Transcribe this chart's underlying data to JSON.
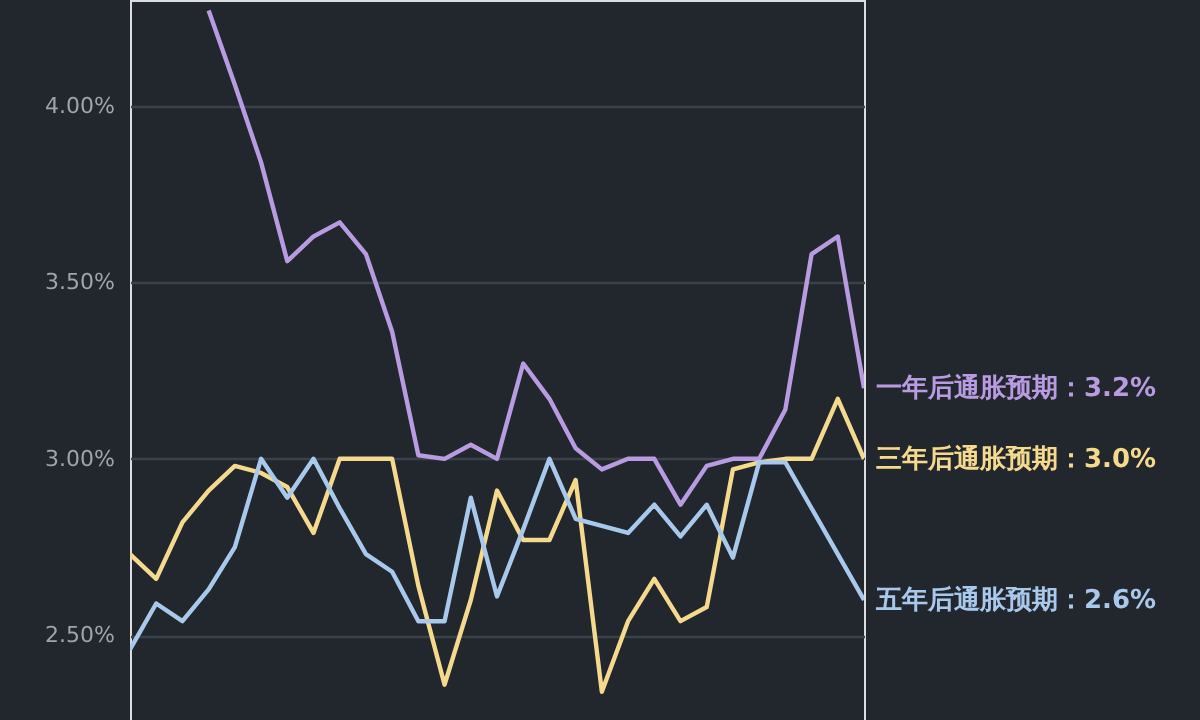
{
  "chart_data": {
    "type": "line",
    "categories": [
      null,
      null,
      null,
      null,
      null,
      null,
      null,
      null,
      null,
      null,
      null,
      null,
      null,
      null,
      null,
      null,
      null,
      null,
      null,
      null,
      null,
      null,
      null,
      null,
      null,
      null,
      null,
      null,
      null
    ],
    "series": [
      {
        "name": "一年后通胀预期：3.2%",
        "color": "#b89be0",
        "values": [
          null,
          null,
          null,
          4.27,
          4.06,
          3.84,
          3.56,
          3.63,
          3.67,
          3.58,
          3.36,
          3.01,
          3.0,
          3.04,
          3.0,
          3.27,
          3.17,
          3.03,
          2.97,
          3.0,
          3.0,
          2.87,
          2.98,
          3.0,
          3.0,
          3.14,
          3.58,
          3.63,
          3.2
        ]
      },
      {
        "name": "三年后通胀预期：3.0%",
        "color": "#f5d98c",
        "values": [
          2.73,
          2.66,
          2.82,
          2.91,
          2.98,
          2.96,
          2.92,
          2.79,
          3.0,
          3.0,
          3.0,
          2.64,
          2.36,
          2.6,
          2.91,
          2.77,
          2.77,
          2.94,
          2.34,
          2.54,
          2.66,
          2.54,
          2.58,
          2.97,
          2.99,
          3.0,
          3.0,
          3.17,
          3.0
        ]
      },
      {
        "name": "五年后通胀预期：2.6%",
        "color": "#a8c8ec",
        "values": [
          2.46,
          2.59,
          2.54,
          2.63,
          2.75,
          3.0,
          2.89,
          3.0,
          2.86,
          2.73,
          2.68,
          2.54,
          2.54,
          2.89,
          2.61,
          2.8,
          3.0,
          2.83,
          2.81,
          2.79,
          2.87,
          2.78,
          2.87,
          2.72,
          2.99,
          2.99,
          2.86,
          2.73,
          2.6
        ]
      }
    ],
    "ylim": [
      2.26,
      4.3
    ],
    "yticks": [
      {
        "value": 2.5,
        "label": "2.50%"
      },
      {
        "value": 3.0,
        "label": "3.00%"
      },
      {
        "value": 3.5,
        "label": "3.50%"
      },
      {
        "value": 4.0,
        "label": "4.00%"
      }
    ],
    "grid": "y",
    "tick_labels": "y",
    "marker": "none",
    "line_style": "solid"
  }
}
